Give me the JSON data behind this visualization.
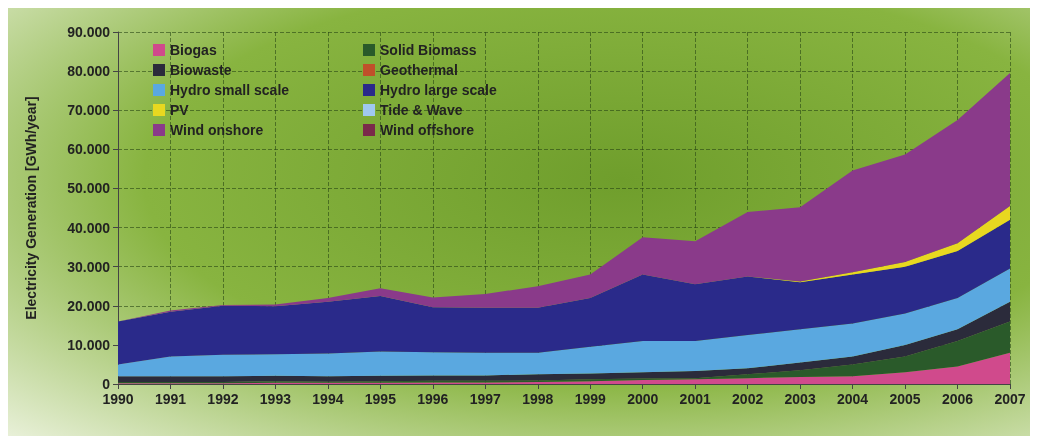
{
  "chart_data": {
    "type": "area",
    "stacked": true,
    "ylabel": "Electricity Generation [GWh/year]",
    "categories": [
      "1990",
      "1991",
      "1992",
      "1993",
      "1994",
      "1995",
      "1996",
      "1997",
      "1998",
      "1999",
      "2000",
      "2001",
      "2002",
      "2003",
      "2004",
      "2005",
      "2006",
      "2007"
    ],
    "ylim": [
      0,
      90000
    ],
    "yticks": [
      {
        "value": 0,
        "label": "0"
      },
      {
        "value": 10000,
        "label": "10.000"
      },
      {
        "value": 20000,
        "label": "20.000"
      },
      {
        "value": 30000,
        "label": "30.000"
      },
      {
        "value": 40000,
        "label": "40.000"
      },
      {
        "value": 50000,
        "label": "50.000"
      },
      {
        "value": 60000,
        "label": "60.000"
      },
      {
        "value": 70000,
        "label": "70.000"
      },
      {
        "value": 80000,
        "label": "80.000"
      },
      {
        "value": 90000,
        "label": "90.000"
      }
    ],
    "grid": true,
    "legend": "top left",
    "series": [
      {
        "name": "Biogas",
        "color": "#d04a8c",
        "values": [
          200,
          200,
          200,
          300,
          300,
          300,
          400,
          400,
          500,
          700,
          1000,
          1200,
          1500,
          1800,
          2000,
          3000,
          4500,
          8000
        ]
      },
      {
        "name": "Solid Biomass",
        "color": "#2a5a2a",
        "values": [
          300,
          300,
          300,
          400,
          300,
          400,
          400,
          400,
          400,
          500,
          400,
          300,
          1000,
          1700,
          3000,
          4000,
          6500,
          8000
        ]
      },
      {
        "name": "Biowaste",
        "color": "#2b2b3b",
        "values": [
          1500,
          1500,
          1500,
          1400,
          1400,
          1400,
          1400,
          1400,
          1600,
          1500,
          1600,
          1800,
          1500,
          2000,
          2000,
          3000,
          3000,
          5000
        ]
      },
      {
        "name": "Geothermal",
        "color": "#c0502a",
        "values": [
          null,
          null,
          null,
          null,
          null,
          null,
          null,
          null,
          null,
          null,
          null,
          null,
          null,
          null,
          null,
          null,
          null,
          null
        ]
      },
      {
        "name": "Hydro small scale",
        "color": "#5aa8e0",
        "values": [
          3000,
          5000,
          5500,
          5500,
          5800,
          6200,
          5900,
          5800,
          5500,
          6800,
          8000,
          7700,
          8500,
          8500,
          8500,
          8000,
          8000,
          8500
        ]
      },
      {
        "name": "Hydro large scale",
        "color": "#2a2a8a",
        "values": [
          11000,
          11500,
          12500,
          12300,
          13200,
          14200,
          11500,
          11500,
          11500,
          12500,
          17000,
          14500,
          15000,
          12000,
          12500,
          12000,
          12000,
          12500
        ]
      },
      {
        "name": "PV",
        "color": "#e8d820",
        "values": [
          0,
          0,
          0,
          0,
          0,
          0,
          0,
          0,
          0,
          0,
          0,
          0,
          0,
          200,
          600,
          1200,
          2000,
          3500
        ]
      },
      {
        "name": "Tide & Wave",
        "color": "#a0c8f0",
        "values": [
          null,
          null,
          null,
          null,
          null,
          null,
          null,
          null,
          null,
          null,
          null,
          null,
          null,
          null,
          null,
          null,
          null,
          null
        ]
      },
      {
        "name": "Wind onshore",
        "color": "#8a3a8a",
        "values": [
          0,
          300,
          200,
          400,
          1000,
          2000,
          2500,
          3500,
          5500,
          6000,
          9500,
          11000,
          16500,
          19000,
          26000,
          27500,
          31500,
          34000
        ]
      },
      {
        "name": "Wind offshore",
        "color": "#7a2a4a",
        "values": [
          null,
          null,
          null,
          null,
          null,
          null,
          null,
          null,
          null,
          null,
          null,
          null,
          null,
          null,
          null,
          null,
          null,
          null
        ]
      }
    ]
  }
}
